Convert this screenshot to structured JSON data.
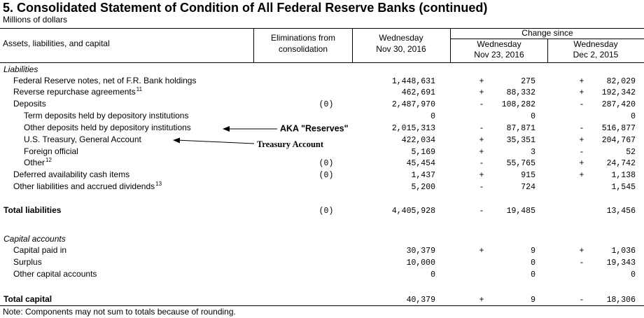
{
  "title": "5. Consolidated Statement of Condition of All Federal Reserve Banks (continued)",
  "subtitle": "Millions of dollars",
  "header": {
    "col0": "Assets, liabilities, and capital",
    "col1": [
      "Eliminations from",
      "consolidation"
    ],
    "col2": [
      "Wednesday",
      "Nov 30, 2016"
    ],
    "change": "Change since",
    "col3": [
      "Wednesday",
      "Nov 23, 2016"
    ],
    "col4": [
      "Wednesday",
      "Dec 2, 2015"
    ]
  },
  "rows": [
    {
      "label": "Liabilities"
    },
    {
      "label": "Federal Reserve notes, net of F.R. Bank holdings",
      "value": "1,448,631",
      "sign1": "+",
      "change1": "275",
      "sign2": "+",
      "change2": "82,029"
    },
    {
      "label": "Reverse repurchase agreements",
      "sup": "11",
      "value": "462,691",
      "sign1": "+",
      "change1": "88,332",
      "sign2": "+",
      "change2": "192,342"
    },
    {
      "label": "Deposits",
      "elim": "(0)",
      "value": "2,487,970",
      "sign1": "-",
      "change1": "108,282",
      "sign2": "-",
      "change2": "287,420"
    },
    {
      "label": "Term deposits held by depository institutions",
      "value": "0",
      "change1": "0",
      "change2": "0"
    },
    {
      "label": "Other deposits held by depository institutions",
      "value": "2,015,313",
      "sign1": "-",
      "change1": "87,871",
      "sign2": "-",
      "change2": "516,877"
    },
    {
      "label": "U.S. Treasury, General Account",
      "value": "422,034",
      "sign1": "+",
      "change1": "35,351",
      "sign2": "+",
      "change2": "204,767"
    },
    {
      "label": "Foreign official",
      "value": "5,169",
      "sign1": "+",
      "change1": "3",
      "sign2": "-",
      "change2": "52"
    },
    {
      "label": "Other",
      "sup": "12",
      "elim": "(0)",
      "value": "45,454",
      "sign1": "-",
      "change1": "55,765",
      "sign2": "+",
      "change2": "24,742"
    },
    {
      "label": "Deferred availability cash items",
      "elim": "(0)",
      "value": "1,437",
      "sign1": "+",
      "change1": "915",
      "sign2": "+",
      "change2": "1,138"
    },
    {
      "label": "Other liabilities and accrued dividends",
      "sup": "13",
      "value": "5,200",
      "sign1": "-",
      "change1": "724",
      "change2": "1,545"
    },
    {
      "label": "Total liabilities",
      "elim": "(0)",
      "value": "4,405,928",
      "sign1": "-",
      "change1": "19,485",
      "change2": "13,456"
    },
    {
      "label": "Capital accounts"
    },
    {
      "label": "Capital paid in",
      "value": "30,379",
      "sign1": "+",
      "change1": "9",
      "sign2": "+",
      "change2": "1,036"
    },
    {
      "label": "Surplus",
      "value": "10,000",
      "change1": "0",
      "sign2": "-",
      "change2": "19,343"
    },
    {
      "label": "Other capital accounts",
      "value": "0",
      "change1": "0",
      "change2": "0"
    },
    {
      "label": "Total capital",
      "value": "40,379",
      "sign1": "+",
      "change1": "9",
      "sign2": "-",
      "change2": "18,306"
    }
  ],
  "annotations": [
    "AKA \"Reserves\"",
    "Treasury Account"
  ],
  "note": "Note: Components may not sum to totals because of rounding."
}
